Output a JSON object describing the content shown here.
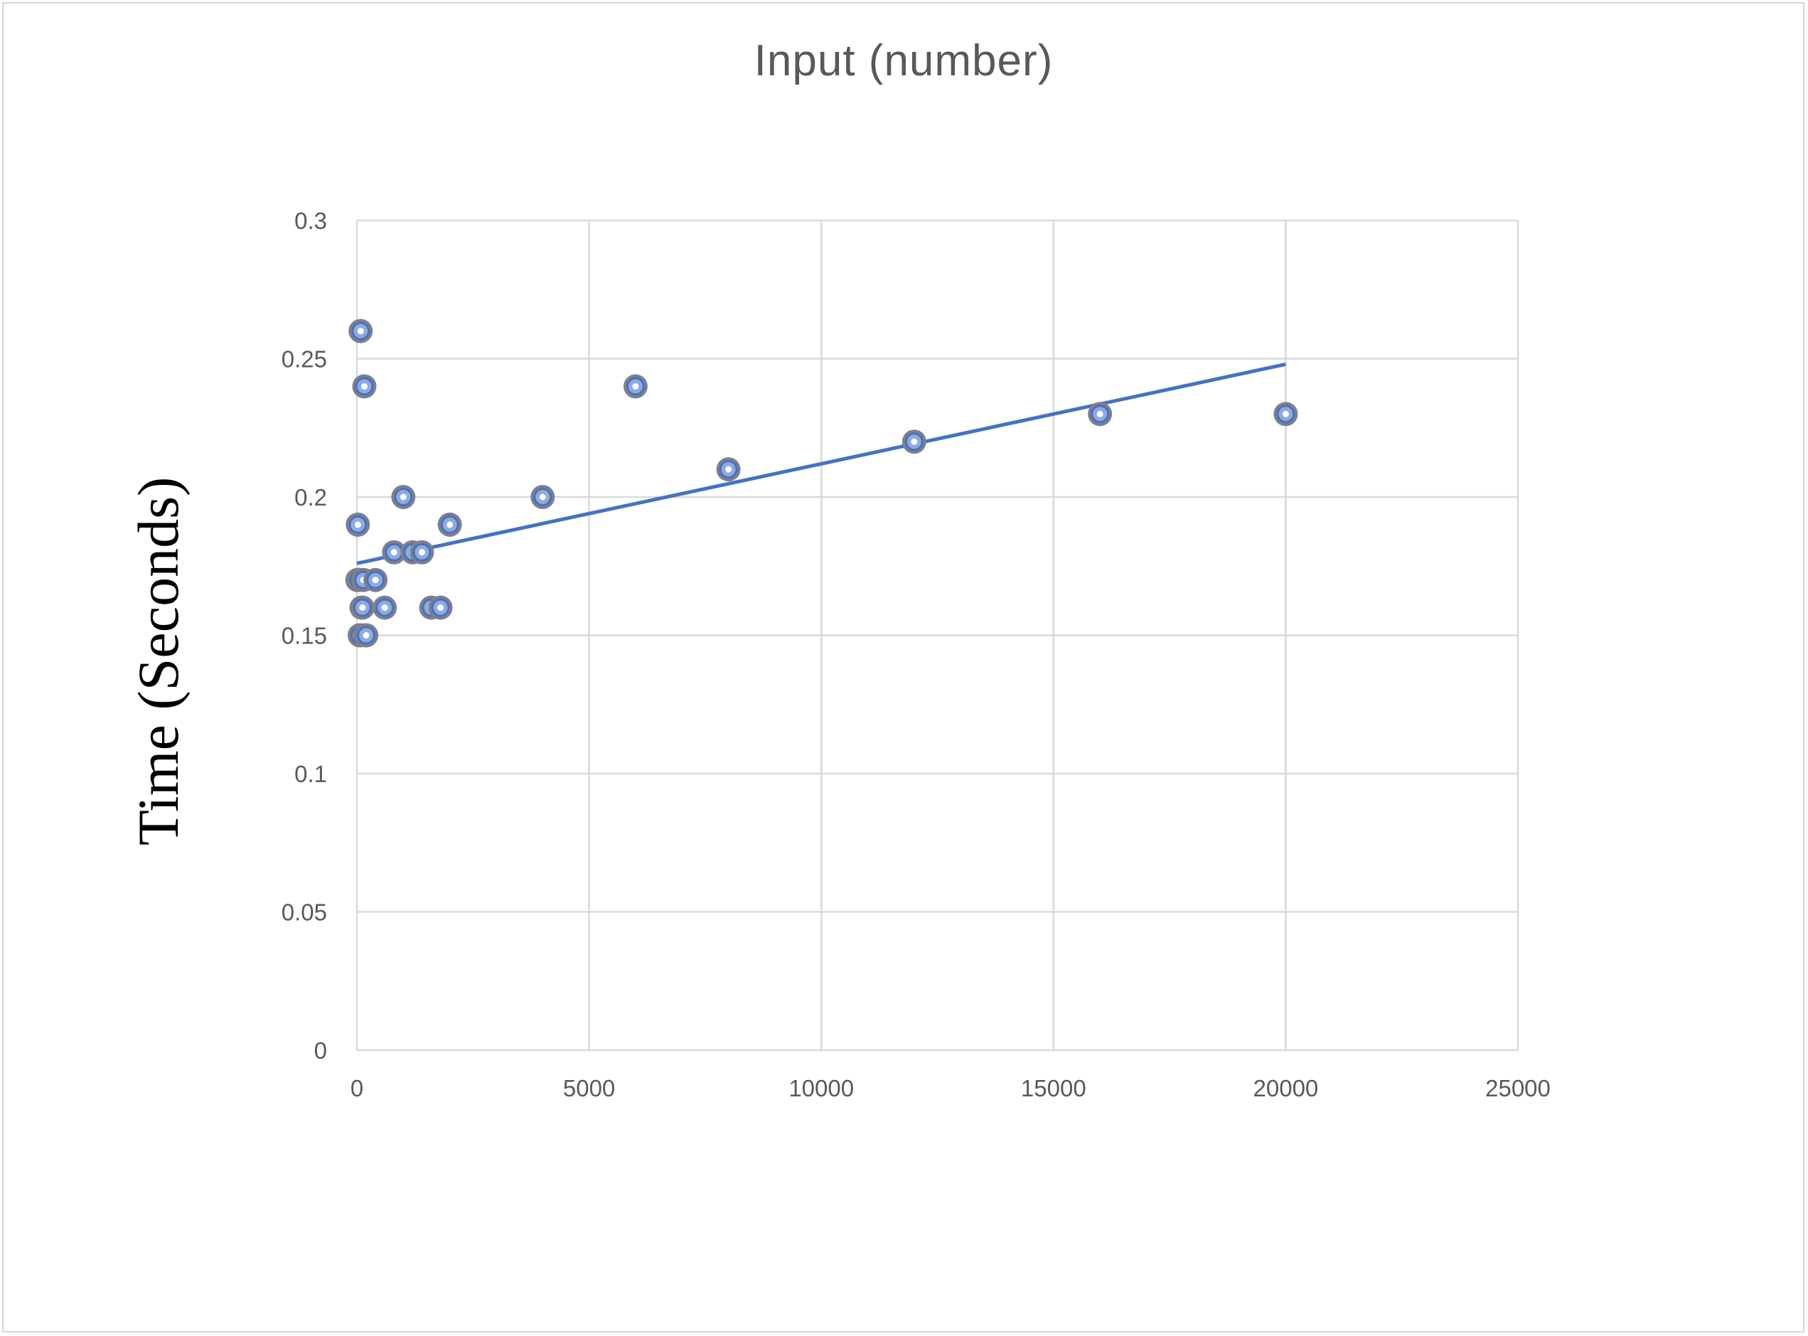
{
  "chart_data": {
    "type": "scatter",
    "title": "Input (number)",
    "xlabel": "",
    "ylabel": "Time (Seconds)",
    "xlim": [
      0,
      25000
    ],
    "ylim": [
      0,
      0.3
    ],
    "x_ticks": [
      0,
      5000,
      10000,
      15000,
      20000,
      25000
    ],
    "y_ticks": [
      0,
      0.05,
      0.1,
      0.15,
      0.2,
      0.25,
      0.3
    ],
    "x_tick_labels": [
      "0",
      "5000",
      "10000",
      "15000",
      "20000",
      "25000"
    ],
    "y_tick_labels": [
      "0",
      "0.05",
      "0.1",
      "0.15",
      "0.2",
      "0.25",
      "0.3"
    ],
    "grid": true,
    "legend": "none",
    "series": [
      {
        "points": [
          {
            "x": 10,
            "y": 0.17
          },
          {
            "x": 20,
            "y": 0.19
          },
          {
            "x": 40,
            "y": 0.17
          },
          {
            "x": 60,
            "y": 0.15
          },
          {
            "x": 80,
            "y": 0.26
          },
          {
            "x": 100,
            "y": 0.16
          },
          {
            "x": 120,
            "y": 0.16
          },
          {
            "x": 140,
            "y": 0.17
          },
          {
            "x": 160,
            "y": 0.24
          },
          {
            "x": 180,
            "y": 0.15
          },
          {
            "x": 200,
            "y": 0.15
          },
          {
            "x": 400,
            "y": 0.17
          },
          {
            "x": 600,
            "y": 0.16
          },
          {
            "x": 800,
            "y": 0.18
          },
          {
            "x": 1000,
            "y": 0.2
          },
          {
            "x": 1200,
            "y": 0.18
          },
          {
            "x": 1400,
            "y": 0.18
          },
          {
            "x": 1600,
            "y": 0.16
          },
          {
            "x": 1800,
            "y": 0.16
          },
          {
            "x": 2000,
            "y": 0.19
          },
          {
            "x": 4000,
            "y": 0.2
          },
          {
            "x": 6000,
            "y": 0.24
          },
          {
            "x": 8000,
            "y": 0.21
          },
          {
            "x": 12000,
            "y": 0.22
          },
          {
            "x": 16000,
            "y": 0.23
          },
          {
            "x": 20000,
            "y": 0.23
          }
        ]
      }
    ],
    "trendline": {
      "type": "linear",
      "x_range": [
        0,
        20000
      ],
      "y_start": 0.176,
      "y_end": 0.248
    },
    "colors": {
      "marker_outline": "#7f7f8c",
      "marker_ring": "#4472c4",
      "marker_fill": "#8faadc",
      "marker_center": "#ffffff",
      "trendline": "#4472c4",
      "grid": "#d9d9d9"
    }
  }
}
